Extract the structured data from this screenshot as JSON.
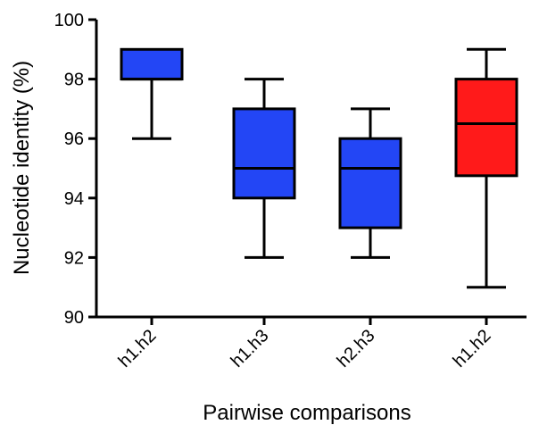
{
  "chart_data": {
    "type": "box",
    "xlabel": "Pairwise comparisons",
    "ylabel": "Nucleotide identity (%)",
    "ylim": [
      90,
      100
    ],
    "yticks": [
      90,
      92,
      94,
      96,
      98,
      100
    ],
    "categories": [
      "h1.h2",
      "h1.h3",
      "h2.h3",
      "h1.h2"
    ],
    "boxes": [
      {
        "min": 96,
        "q1": 98,
        "median": 98,
        "q3": 99,
        "max": 99,
        "color": "#2346f5"
      },
      {
        "min": 92,
        "q1": 94,
        "median": 95,
        "q3": 97,
        "max": 98,
        "color": "#2346f5"
      },
      {
        "min": 92,
        "q1": 93,
        "median": 95,
        "q3": 96,
        "max": 97,
        "color": "#2346f5"
      },
      {
        "min": 91,
        "q1": 94.75,
        "median": 96.5,
        "q3": 98,
        "max": 99,
        "color": "#ff1a1a"
      }
    ]
  }
}
